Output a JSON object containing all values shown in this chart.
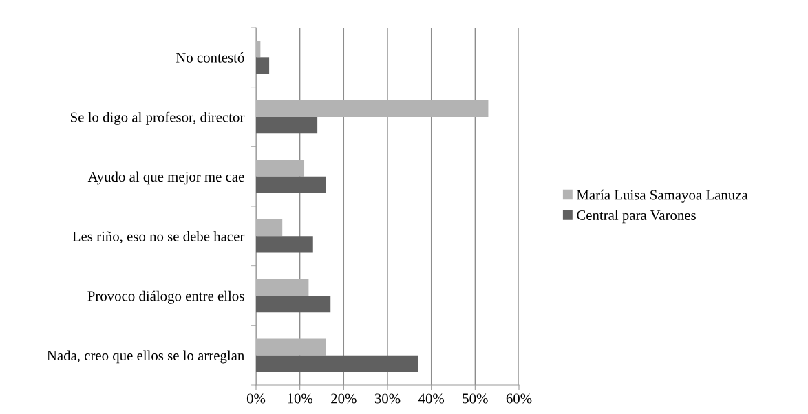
{
  "chart_data": {
    "type": "bar",
    "orientation": "horizontal",
    "categories": [
      "No contestó",
      "Se lo digo al profesor, director",
      "Ayudo al que mejor me cae",
      "Les riño, eso no se debe hacer",
      "Provoco diálogo entre ellos",
      "Nada, creo que ellos se lo arreglan"
    ],
    "series": [
      {
        "name": "María Luisa Samayoa Lanuza",
        "color": "#b3b3b3",
        "values": [
          1,
          53,
          11,
          6,
          12,
          16
        ]
      },
      {
        "name": "Central para Varones",
        "color": "#606060",
        "values": [
          3,
          14,
          16,
          13,
          17,
          37
        ]
      }
    ],
    "xlim": [
      0,
      60
    ],
    "xticks": [
      {
        "value": 0,
        "label": "0%"
      },
      {
        "value": 10,
        "label": "10%"
      },
      {
        "value": 20,
        "label": "20%"
      },
      {
        "value": 30,
        "label": "30%"
      },
      {
        "value": 40,
        "label": "40%"
      },
      {
        "value": 50,
        "label": "50%"
      },
      {
        "value": 60,
        "label": "60%"
      }
    ],
    "grid": "x",
    "legend": "right"
  }
}
